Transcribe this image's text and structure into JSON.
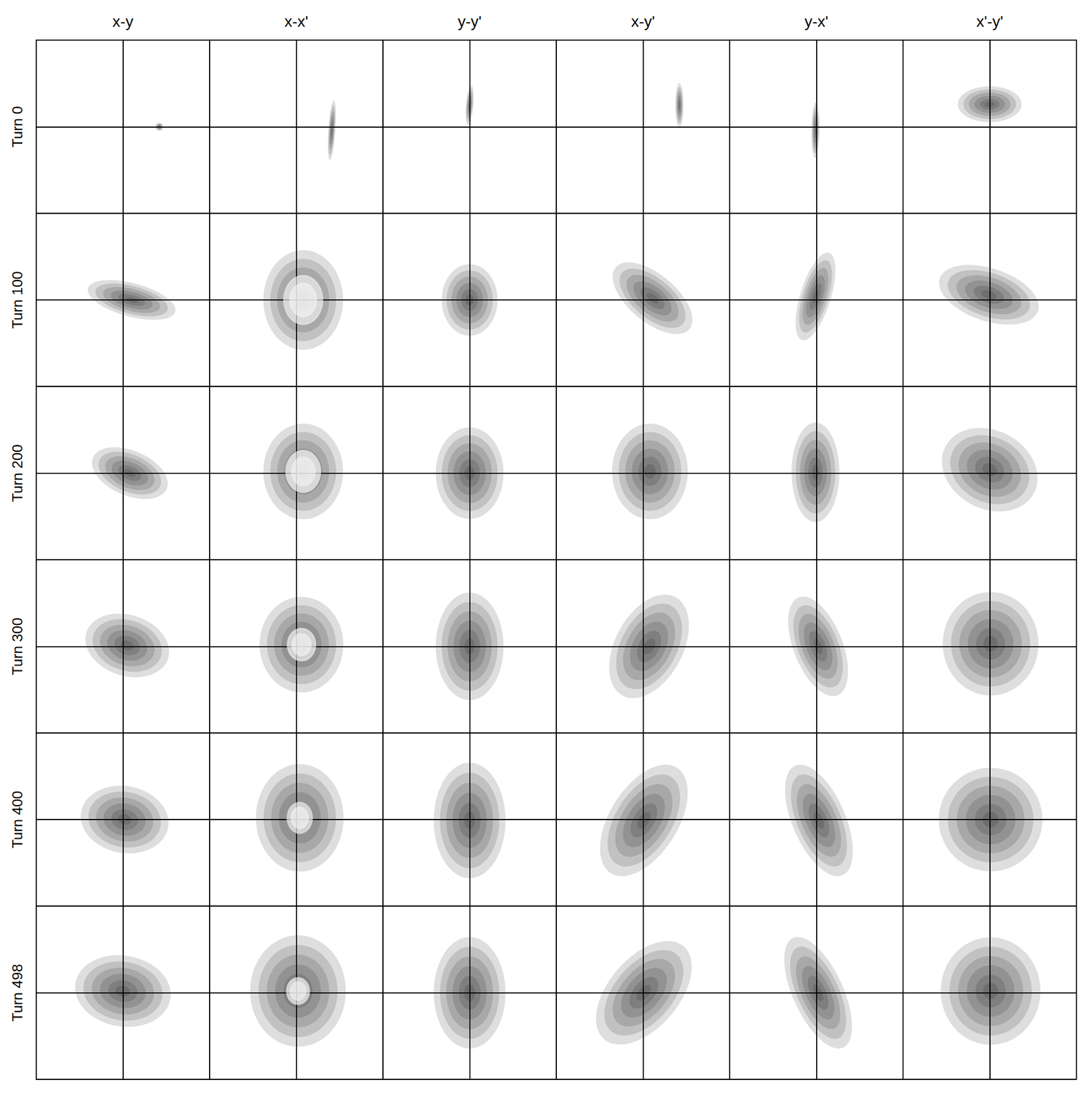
{
  "chart_data": {
    "type": "density_grid",
    "columns": [
      "x-y",
      "x-x'",
      "y-y'",
      "x-y'",
      "y-x'",
      "x'-y'"
    ],
    "rows": [
      "Turn 0",
      "Turn 100",
      "Turn 200",
      "Turn 300",
      "Turn 400",
      "Turn 498"
    ],
    "xlim": [
      -1,
      1
    ],
    "ylim": [
      -1,
      1
    ],
    "tick_labels": false,
    "grid": false,
    "color": "#000000",
    "panels": [
      [
        {
          "mean": [
            0.42,
            0.0
          ],
          "sigma": [
            0.02,
            0.02
          ],
          "corr": 0.0,
          "hole": 0
        },
        {
          "mean": [
            0.41,
            -0.04
          ],
          "sigma": [
            0.02,
            0.15
          ],
          "corr": 0.5,
          "hole": 0
        },
        {
          "mean": [
            0.0,
            0.25
          ],
          "sigma": [
            0.02,
            0.1
          ],
          "corr": 0.4,
          "hole": 0
        },
        {
          "mean": [
            0.42,
            0.25
          ],
          "sigma": [
            0.02,
            0.11
          ],
          "corr": 0.0,
          "hole": 0
        },
        {
          "mean": [
            -0.01,
            -0.04
          ],
          "sigma": [
            0.02,
            0.14
          ],
          "corr": 0.1,
          "hole": 0
        },
        {
          "mean": [
            0.0,
            0.26
          ],
          "sigma": [
            0.16,
            0.09
          ],
          "corr": 0.0,
          "hole": 0
        }
      ],
      [
        {
          "mean": [
            0.1,
            0.0
          ],
          "sigma": [
            0.22,
            0.1
          ],
          "corr": -0.5,
          "hole": 0
        },
        {
          "mean": [
            0.08,
            0.0
          ],
          "sigma": [
            0.2,
            0.25
          ],
          "corr": 0.0,
          "hole": 0.5
        },
        {
          "mean": [
            0.0,
            0.0
          ],
          "sigma": [
            0.14,
            0.18
          ],
          "corr": 0.0,
          "hole": 0
        },
        {
          "mean": [
            0.11,
            0.02
          ],
          "sigma": [
            0.2,
            0.18
          ],
          "corr": -0.6,
          "hole": 0
        },
        {
          "mean": [
            -0.01,
            0.04
          ],
          "sigma": [
            0.1,
            0.22
          ],
          "corr": 0.6,
          "hole": 0
        },
        {
          "mean": [
            -0.01,
            0.06
          ],
          "sigma": [
            0.25,
            0.15
          ],
          "corr": -0.4,
          "hole": 0
        }
      ],
      [
        {
          "mean": [
            0.08,
            0.0
          ],
          "sigma": [
            0.19,
            0.13
          ],
          "corr": -0.4,
          "hole": 0
        },
        {
          "mean": [
            0.08,
            0.02
          ],
          "sigma": [
            0.2,
            0.24
          ],
          "corr": 0.0,
          "hole": 0.45
        },
        {
          "mean": [
            0.0,
            0.0
          ],
          "sigma": [
            0.17,
            0.23
          ],
          "corr": 0.0,
          "hole": 0
        },
        {
          "mean": [
            0.08,
            0.02
          ],
          "sigma": [
            0.19,
            0.24
          ],
          "corr": 0.0,
          "hole": 0
        },
        {
          "mean": [
            -0.01,
            0.01
          ],
          "sigma": [
            0.12,
            0.25
          ],
          "corr": 0.0,
          "hole": 0
        },
        {
          "mean": [
            0.0,
            0.04
          ],
          "sigma": [
            0.24,
            0.21
          ],
          "corr": -0.2,
          "hole": 0
        }
      ],
      [
        {
          "mean": [
            0.05,
            0.01
          ],
          "sigma": [
            0.21,
            0.16
          ],
          "corr": -0.2,
          "hole": 0
        },
        {
          "mean": [
            0.06,
            0.02
          ],
          "sigma": [
            0.21,
            0.24
          ],
          "corr": 0.0,
          "hole": 0.35
        },
        {
          "mean": [
            0.0,
            0.0
          ],
          "sigma": [
            0.17,
            0.27
          ],
          "corr": 0.0,
          "hole": 0
        },
        {
          "mean": [
            0.07,
            0.0
          ],
          "sigma": [
            0.2,
            0.26
          ],
          "corr": 0.4,
          "hole": 0
        },
        {
          "mean": [
            0.02,
            0.0
          ],
          "sigma": [
            0.15,
            0.25
          ],
          "corr": -0.5,
          "hole": 0
        },
        {
          "mean": [
            0.01,
            0.03
          ],
          "sigma": [
            0.24,
            0.26
          ],
          "corr": 0.0,
          "hole": 0
        }
      ],
      [
        {
          "mean": [
            0.02,
            0.0
          ],
          "sigma": [
            0.22,
            0.17
          ],
          "corr": -0.1,
          "hole": 0
        },
        {
          "mean": [
            0.04,
            0.02
          ],
          "sigma": [
            0.22,
            0.27
          ],
          "corr": 0.0,
          "hole": 0.3
        },
        {
          "mean": [
            0.0,
            -0.01
          ],
          "sigma": [
            0.18,
            0.29
          ],
          "corr": 0.0,
          "hole": 0
        },
        {
          "mean": [
            0.01,
            -0.01
          ],
          "sigma": [
            0.22,
            0.28
          ],
          "corr": 0.5,
          "hole": 0
        },
        {
          "mean": [
            0.03,
            -0.01
          ],
          "sigma": [
            0.17,
            0.28
          ],
          "corr": -0.55,
          "hole": 0
        },
        {
          "mean": [
            0.01,
            0.0
          ],
          "sigma": [
            0.26,
            0.26
          ],
          "corr": 0.0,
          "hole": 0
        }
      ],
      [
        {
          "mean": [
            0.0,
            0.02
          ],
          "sigma": [
            0.24,
            0.18
          ],
          "corr": -0.1,
          "hole": 0
        },
        {
          "mean": [
            0.02,
            0.02
          ],
          "sigma": [
            0.24,
            0.28
          ],
          "corr": 0.0,
          "hole": 0.25
        },
        {
          "mean": [
            0.0,
            0.0
          ],
          "sigma": [
            0.18,
            0.28
          ],
          "corr": 0.0,
          "hole": 0
        },
        {
          "mean": [
            0.01,
            0.0
          ],
          "sigma": [
            0.24,
            0.26
          ],
          "corr": 0.5,
          "hole": 0
        },
        {
          "mean": [
            0.02,
            0.0
          ],
          "sigma": [
            0.17,
            0.28
          ],
          "corr": -0.6,
          "hole": 0
        },
        {
          "mean": [
            0.01,
            0.02
          ],
          "sigma": [
            0.25,
            0.27
          ],
          "corr": 0.0,
          "hole": 0
        }
      ]
    ]
  }
}
